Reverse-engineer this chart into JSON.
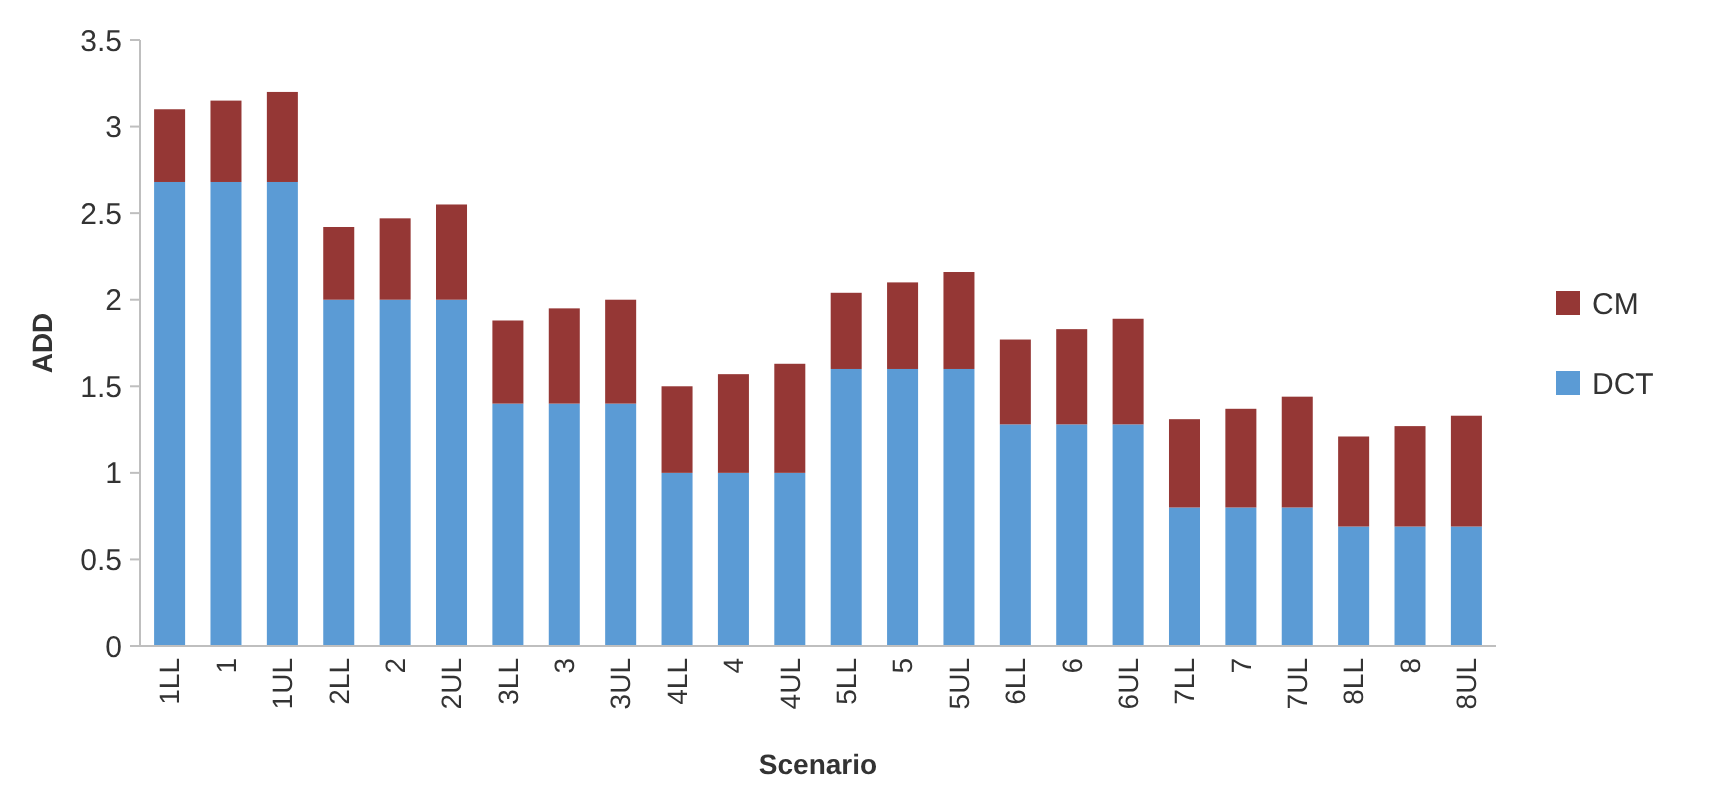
{
  "chart_data": {
    "type": "bar",
    "stacked": true,
    "xlabel": "Scenario",
    "ylabel": "ADD",
    "categories": [
      "1LL",
      "1",
      "1UL",
      "2LL",
      "2",
      "2UL",
      "3LL",
      "3",
      "3UL",
      "4LL",
      "4",
      "4UL",
      "5LL",
      "5",
      "5UL",
      "6LL",
      "6",
      "6UL",
      "7LL",
      "7",
      "7UL",
      "8LL",
      "8",
      "8UL"
    ],
    "series": [
      {
        "name": "DCT",
        "color": "#5b9bd5",
        "values": [
          2.68,
          2.68,
          2.68,
          2.0,
          2.0,
          2.0,
          1.4,
          1.4,
          1.4,
          1.0,
          1.0,
          1.0,
          1.6,
          1.6,
          1.6,
          1.28,
          1.28,
          1.28,
          0.8,
          0.8,
          0.8,
          0.69,
          0.69,
          0.69
        ]
      },
      {
        "name": "CM",
        "color": "#953735",
        "values": [
          0.42,
          0.47,
          0.52,
          0.42,
          0.47,
          0.55,
          0.48,
          0.55,
          0.6,
          0.5,
          0.57,
          0.63,
          0.44,
          0.5,
          0.56,
          0.49,
          0.55,
          0.61,
          0.51,
          0.57,
          0.64,
          0.52,
          0.58,
          0.64
        ]
      }
    ],
    "ylim": [
      0,
      3.5
    ],
    "yticks": [
      0,
      0.5,
      1,
      1.5,
      2,
      2.5,
      3,
      3.5
    ],
    "grid": false,
    "legend": "right"
  }
}
